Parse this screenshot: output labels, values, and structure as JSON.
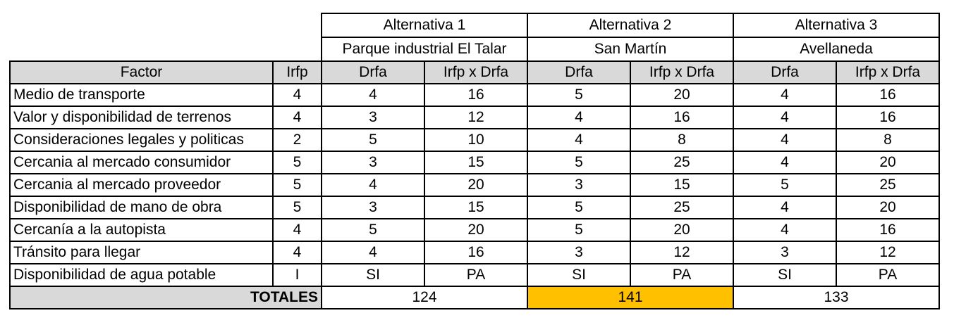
{
  "alternatives": [
    {
      "title": "Alternativa 1",
      "place": "Parque industrial El Talar"
    },
    {
      "title": "Alternativa 2",
      "place": "San Martín"
    },
    {
      "title": "Alternativa 3",
      "place": "Avellaneda"
    }
  ],
  "header": {
    "factor": "Factor",
    "irfp": "Irfp",
    "drfa": "Drfa",
    "product": "Irfp x Drfa"
  },
  "rows": [
    {
      "factor": "Medio de transporte",
      "irfp": "4",
      "a1_drfa": "4",
      "a1_prod": "16",
      "a2_drfa": "5",
      "a2_prod": "20",
      "a3_drfa": "4",
      "a3_prod": "16"
    },
    {
      "factor": "Valor y disponibilidad de terrenos",
      "irfp": "4",
      "a1_drfa": "3",
      "a1_prod": "12",
      "a2_drfa": "4",
      "a2_prod": "16",
      "a3_drfa": "4",
      "a3_prod": "16"
    },
    {
      "factor": "Consideraciones legales y politicas",
      "irfp": "2",
      "a1_drfa": "5",
      "a1_prod": "10",
      "a2_drfa": "4",
      "a2_prod": "8",
      "a3_drfa": "4",
      "a3_prod": "8"
    },
    {
      "factor": "Cercania al mercado consumidor",
      "irfp": "5",
      "a1_drfa": "3",
      "a1_prod": "15",
      "a2_drfa": "5",
      "a2_prod": "25",
      "a3_drfa": "4",
      "a3_prod": "20"
    },
    {
      "factor": "Cercania al mercado proveedor",
      "irfp": "5",
      "a1_drfa": "4",
      "a1_prod": "20",
      "a2_drfa": "3",
      "a2_prod": "15",
      "a3_drfa": "5",
      "a3_prod": "25"
    },
    {
      "factor": "Disponibilidad de mano de obra",
      "irfp": "5",
      "a1_drfa": "3",
      "a1_prod": "15",
      "a2_drfa": "5",
      "a2_prod": "25",
      "a3_drfa": "4",
      "a3_prod": "20"
    },
    {
      "factor": "Cercanía a la autopista",
      "irfp": "4",
      "a1_drfa": "5",
      "a1_prod": "20",
      "a2_drfa": "5",
      "a2_prod": "20",
      "a3_drfa": "4",
      "a3_prod": "16"
    },
    {
      "factor": "Tránsito para llegar",
      "irfp": "4",
      "a1_drfa": "4",
      "a1_prod": "16",
      "a2_drfa": "3",
      "a2_prod": "12",
      "a3_drfa": "3",
      "a3_prod": "12"
    },
    {
      "factor": "Disponibilidad de agua potable",
      "irfp": "I",
      "a1_drfa": "SI",
      "a1_prod": "PA",
      "a2_drfa": "SI",
      "a2_prod": "PA",
      "a3_drfa": "SI",
      "a3_prod": "PA"
    }
  ],
  "totals": {
    "label": "TOTALES",
    "a1": "124",
    "a2": "141",
    "a3": "133",
    "highlight_color": "#ffc000"
  },
  "colors": {
    "header_gray": "#d9d9d9",
    "border": "#000000"
  }
}
